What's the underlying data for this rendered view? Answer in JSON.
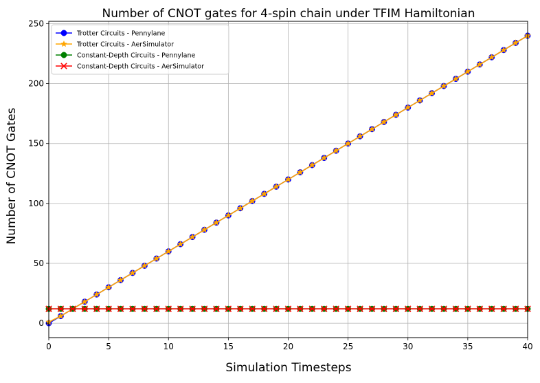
{
  "chart_data": {
    "type": "line",
    "title": "Number of CNOT gates for 4-spin chain under TFIM Hamiltonian",
    "xlabel": "Simulation Timesteps",
    "ylabel": "Number of CNOT Gates",
    "xlim": [
      0,
      40
    ],
    "ylim": [
      -12,
      252
    ],
    "xticks": [
      0,
      5,
      10,
      15,
      20,
      25,
      30,
      35,
      40
    ],
    "yticks": [
      0,
      50,
      100,
      150,
      200,
      250
    ],
    "grid": true,
    "legend_position": "top-left",
    "x": [
      0,
      1,
      2,
      3,
      4,
      5,
      6,
      7,
      8,
      9,
      10,
      11,
      12,
      13,
      14,
      15,
      16,
      17,
      18,
      19,
      20,
      21,
      22,
      23,
      24,
      25,
      26,
      27,
      28,
      29,
      30,
      31,
      32,
      33,
      34,
      35,
      36,
      37,
      38,
      39,
      40
    ],
    "series": [
      {
        "name": "Trotter Circuits - Pennylane",
        "color": "#0000ff",
        "marker": "circle",
        "values": [
          0,
          6,
          12,
          18,
          24,
          30,
          36,
          42,
          48,
          54,
          60,
          66,
          72,
          78,
          84,
          90,
          96,
          102,
          108,
          114,
          120,
          126,
          132,
          138,
          144,
          150,
          156,
          162,
          168,
          174,
          180,
          186,
          192,
          198,
          204,
          210,
          216,
          222,
          228,
          234,
          240
        ]
      },
      {
        "name": "Trotter Circuits - AerSimulator",
        "color": "#ffa500",
        "marker": "star",
        "values": [
          1,
          6,
          12,
          18,
          24,
          30,
          36,
          42,
          48,
          54,
          60,
          66,
          72,
          78,
          84,
          90,
          96,
          102,
          108,
          114,
          120,
          126,
          132,
          138,
          144,
          150,
          156,
          162,
          168,
          174,
          180,
          186,
          192,
          198,
          204,
          210,
          216,
          222,
          228,
          234,
          240
        ]
      },
      {
        "name": "Constant-Depth Circuits - Pennylane",
        "color": "#008000",
        "marker": "circle",
        "values": [
          12,
          12,
          12,
          12,
          12,
          12,
          12,
          12,
          12,
          12,
          12,
          12,
          12,
          12,
          12,
          12,
          12,
          12,
          12,
          12,
          12,
          12,
          12,
          12,
          12,
          12,
          12,
          12,
          12,
          12,
          12,
          12,
          12,
          12,
          12,
          12,
          12,
          12,
          12,
          12,
          12
        ]
      },
      {
        "name": "Constant-Depth Circuits - AerSimulator",
        "color": "#ff0000",
        "marker": "x",
        "values": [
          12,
          12,
          12,
          12,
          12,
          12,
          12,
          12,
          12,
          12,
          12,
          12,
          12,
          12,
          12,
          12,
          12,
          12,
          12,
          12,
          12,
          12,
          12,
          12,
          12,
          12,
          12,
          12,
          12,
          12,
          12,
          12,
          12,
          12,
          12,
          12,
          12,
          12,
          12,
          12,
          12
        ]
      }
    ]
  }
}
